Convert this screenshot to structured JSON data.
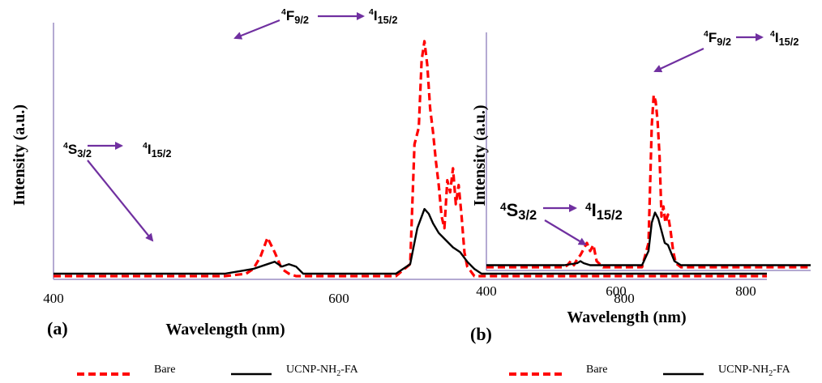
{
  "colors": {
    "axis": "#9b8ec4",
    "bare": "#ff0000",
    "functionalized": "#000000",
    "arrow": "#7030a0",
    "text": "#000000"
  },
  "legend": {
    "bare_label": "Bare",
    "functionalized_label": "UCNP-NH2-FA",
    "functionalized_parts": {
      "pre": "UCNP-NH",
      "sub": "2",
      "post": "-FA"
    }
  },
  "chart_data": [
    {
      "type": "line",
      "panel_label": "(a)",
      "xlabel": "Wavelength (nm)",
      "ylabel": "Intensity (a.u.)",
      "xlim": [
        400,
        900
      ],
      "ylim": [
        0,
        100
      ],
      "xticks": [
        400,
        600,
        800
      ],
      "xtick_labels": [
        "400",
        "600",
        "800"
      ],
      "grid": false,
      "legend_position": "bottom",
      "annotations": [
        {
          "base": "S",
          "sup": "4",
          "sub": "3/2",
          "target_base": "I",
          "target_sup": "4",
          "target_sub": "15/2",
          "points_to_x": 550
        },
        {
          "base": "F",
          "sup": "4",
          "sub": "9/2",
          "target_base": "I",
          "target_sup": "4",
          "target_sub": "15/2",
          "points_to_x": 660
        }
      ],
      "series": [
        {
          "name": "Bare",
          "style": "dashed",
          "x": [
            400,
            520,
            535,
            540,
            545,
            550,
            555,
            560,
            565,
            570,
            600,
            640,
            650,
            653,
            656,
            658,
            660,
            662,
            664,
            666,
            668,
            670,
            672,
            674,
            676,
            678,
            680,
            682,
            684,
            686,
            688,
            690,
            695,
            700,
            900
          ],
          "y": [
            0,
            0,
            1,
            3,
            8,
            16,
            10,
            3,
            1,
            0,
            0,
            0,
            5,
            55,
            62,
            90,
            98,
            88,
            70,
            60,
            48,
            38,
            25,
            20,
            40,
            35,
            45,
            30,
            38,
            25,
            10,
            4,
            0,
            0,
            0
          ]
        },
        {
          "name": "UCNP-NH2-FA",
          "style": "solid",
          "x": [
            400,
            520,
            530,
            540,
            550,
            555,
            560,
            565,
            570,
            575,
            600,
            640,
            650,
            655,
            660,
            663,
            666,
            670,
            675,
            680,
            685,
            690,
            695,
            700,
            900
          ],
          "y": [
            1,
            1,
            2,
            3,
            5,
            6,
            4,
            5,
            4,
            1,
            1,
            1,
            5,
            20,
            28,
            26,
            22,
            18,
            15,
            12,
            10,
            6,
            3,
            1,
            1
          ]
        }
      ]
    },
    {
      "type": "line",
      "panel_label": "(b)",
      "xlabel": "Wavelength (nm)",
      "ylabel": "Intensity (a.u.)",
      "xlim": [
        400,
        900
      ],
      "ylim": [
        0,
        100
      ],
      "xticks": [
        400,
        600,
        800
      ],
      "xtick_labels": [
        "400",
        "600",
        "800"
      ],
      "grid": false,
      "legend_position": "bottom",
      "annotations": [
        {
          "base": "S",
          "sup": "4",
          "sub": "3/2",
          "target_base": "I",
          "target_sup": "4",
          "target_sub": "15/2",
          "points_to_x": 560
        },
        {
          "base": "F",
          "sup": "4",
          "sub": "9/2",
          "target_base": "I",
          "target_sup": "4",
          "target_sub": "15/2",
          "points_to_x": 660
        }
      ],
      "series": [
        {
          "name": "Bare",
          "style": "dashed",
          "x": [
            400,
            520,
            525,
            530,
            535,
            540,
            545,
            550,
            555,
            560,
            565,
            570,
            580,
            640,
            650,
            655,
            658,
            661,
            664,
            667,
            670,
            673,
            676,
            680,
            684,
            688,
            692,
            700,
            900
          ],
          "y": [
            0,
            0,
            1,
            3,
            1,
            4,
            6,
            9,
            12,
            8,
            11,
            3,
            0,
            0,
            12,
            70,
            85,
            82,
            72,
            55,
            25,
            30,
            22,
            26,
            18,
            8,
            2,
            0,
            0
          ]
        },
        {
          "name": "UCNP-NH2-FA",
          "style": "solid",
          "x": [
            400,
            520,
            540,
            545,
            550,
            560,
            580,
            640,
            650,
            655,
            660,
            665,
            670,
            675,
            680,
            685,
            690,
            700,
            900
          ],
          "y": [
            1,
            1,
            2,
            3,
            2,
            1,
            1,
            1,
            8,
            22,
            27,
            24,
            18,
            12,
            11,
            7,
            3,
            1,
            1
          ]
        }
      ]
    }
  ]
}
